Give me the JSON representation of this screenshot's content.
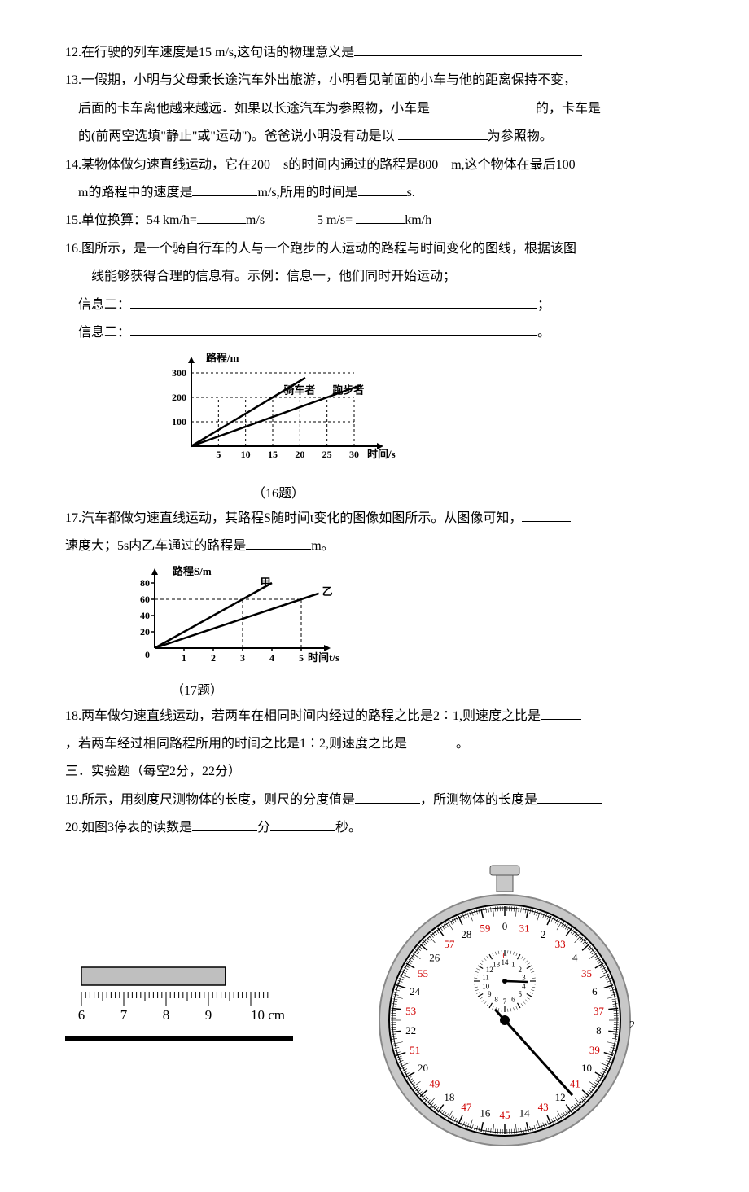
{
  "q12": {
    "num": "12.",
    "text": "在行驶的列车速度是15 m/s,这句话的物理意义是"
  },
  "q13": {
    "num": "13.",
    "l1": "一假期，小明与父母乘长途汽车外出旅游，小明看见前面的小车与他的距离保持不变，",
    "l2a": "后面的卡车离他越来越远．如果以长途汽车为参照物，小车是",
    "l2b": "的，卡车是",
    "l3a": "的(前两空选填\"静止\"或\"运动\")。爸爸说小明没有动是以 ",
    "l3b": "为参照物。"
  },
  "q14": {
    "num": "14.",
    "l1": "某物体做匀速直线运动，它在200　s的时间内通过的路程是800　m,这个物体在最后100",
    "l2a": " m的路程中的速度是",
    "l2b": "m/s,所用的时间是",
    "l2c": "s."
  },
  "q15": {
    "num": "15.",
    "a": "单位换算：54 km/h=",
    "b": "m/s　　　　5 m/s= ",
    "c": "km/h"
  },
  "q16": {
    "num": "16.",
    "l1": "图所示，是一个骑自行车的人与一个跑步的人运动的路程与时间变化的图线，根据该图",
    "l2": "线能够获得合理的信息有。示例：信息一，他们同时开始运动；",
    "info2": "信息二：",
    "info3": "信息二：",
    "caption": "（16题）"
  },
  "q17": {
    "num": "17.",
    "l1": "汽车都做匀速直线运动，其路程S随时间t变化的图像如图所示。从图像可知，",
    "l2a": "速度大；5s内乙车通过的路程是",
    "l2b": "m。",
    "caption": "（17题）"
  },
  "q18": {
    "num": "18.",
    "l1": "两车做匀速直线运动，若两车在相同时间内经过的路程之比是2∶1,则速度之比是",
    "l2a": "，若两车经过相同路程所用的时间之比是1∶2,则速度之比是",
    "l2b": "。"
  },
  "sec3": "三．实验题（每空2分，22分）",
  "q19": {
    "num": "19.",
    "a": "所示，用刻度尺测物体的长度，则尺的分度值是",
    "b": "，所测物体的长度是"
  },
  "q20": {
    "num": "20.",
    "a": "如图3停表的读数是",
    "b": "分",
    "c": "秒。"
  },
  "chart16": {
    "ylabel": "路程/m",
    "xlabel": "时间/s",
    "yTicks": [
      100,
      200,
      300
    ],
    "xTicks": [
      5,
      10,
      15,
      20,
      25,
      30
    ],
    "series1_label": "骑车者",
    "series2_label": "跑步者",
    "axis_color": "#000000",
    "grid_dash": "3,3",
    "s1_x2": 15,
    "s1_y2": 200,
    "s2_x2": 25,
    "s2_y2": 200
  },
  "chart17": {
    "ylabel": "路程S/m",
    "xlabel": "时间t/s",
    "yTicks": [
      20,
      40,
      60,
      80
    ],
    "xTicks": [
      1,
      2,
      3,
      4,
      5
    ],
    "series1_label": "甲",
    "series2_label": "乙",
    "axis_color": "#000000",
    "grid_dash": "4,3",
    "s1_x": 3,
    "s1_y": 60,
    "s2_x": 5,
    "s2_y": 60
  },
  "ruler": {
    "ticks": [
      "6",
      "7",
      "8",
      "9",
      "10 cm"
    ],
    "obj_start": 6.0,
    "obj_end": 9.4,
    "bar_color": "#bfbfbf",
    "border_color": "#000000"
  },
  "stopwatch": {
    "outer_labels_red": [
      "0",
      "31",
      "2",
      "33",
      "4",
      "35",
      "6",
      "37",
      "8",
      "39",
      "10",
      "41",
      "12",
      "43",
      "14",
      "45",
      "16",
      "47",
      "18",
      "49",
      "20",
      "51",
      "22",
      "53",
      "24",
      "55",
      "26",
      "57",
      "28",
      "59"
    ],
    "inner_labels": [
      "14",
      "1",
      "2",
      "3",
      "4",
      "5",
      "6",
      "7",
      "8",
      "9",
      "10",
      "11",
      "12",
      "13"
    ],
    "inner_top": "0",
    "sec_hand_angle_deg": 138,
    "min_hand_angle_deg": 92,
    "red": "#d00000",
    "ring": "#c8c8c8",
    "face": "#ffffff",
    "stroke": "#000000"
  },
  "pageNum": "2"
}
